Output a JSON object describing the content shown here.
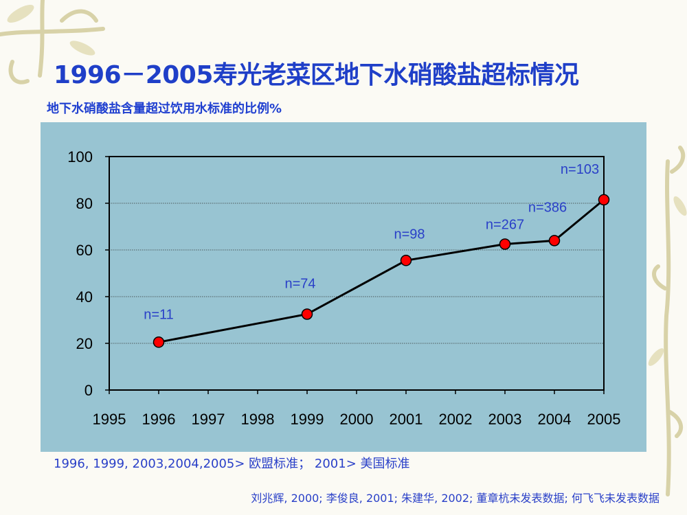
{
  "slide": {
    "title": "1996－2005寿光老菜区地下水硝酸盐超标情况",
    "subtitle": "地下水硝酸盐含量超过饮用水标准的比例%",
    "note": "1996, 1999, 2003,2004,2005> 欧盟标准；  2001> 美国标准",
    "source": "刘兆辉, 2000; 李俊良, 2001; 朱建华, 2002; 董章杭未发表数据; 何飞飞未发表数据"
  },
  "colors": {
    "title": "#1f3fc8",
    "panel": "#98c4d2",
    "plot_bg": "#98c4d2",
    "line": "#000000",
    "marker": "#ff0000",
    "label": "#2a40c8",
    "decoration": "#d8d2a8"
  },
  "chart_data": {
    "type": "line",
    "title": "",
    "xlabel": "",
    "ylabel": "",
    "xlim": [
      1995,
      2005
    ],
    "ylim": [
      0,
      100
    ],
    "x_ticks": [
      "1995",
      "1996",
      "1997",
      "1998",
      "1999",
      "2000",
      "2001",
      "2002",
      "2003",
      "2004",
      "2005"
    ],
    "y_ticks": [
      0,
      20,
      40,
      60,
      80,
      100
    ],
    "grid": true,
    "legend": "none",
    "points": [
      {
        "x": 1996,
        "y": 20.5,
        "label": "n=11"
      },
      {
        "x": 1999,
        "y": 32.5,
        "label": "n=74"
      },
      {
        "x": 2001,
        "y": 55.5,
        "label": "n=98"
      },
      {
        "x": 2003,
        "y": 62.5,
        "label": "n=267"
      },
      {
        "x": 2004,
        "y": 64.0,
        "label": "n=386"
      },
      {
        "x": 2005,
        "y": 81.5,
        "label": "n=103"
      }
    ]
  }
}
